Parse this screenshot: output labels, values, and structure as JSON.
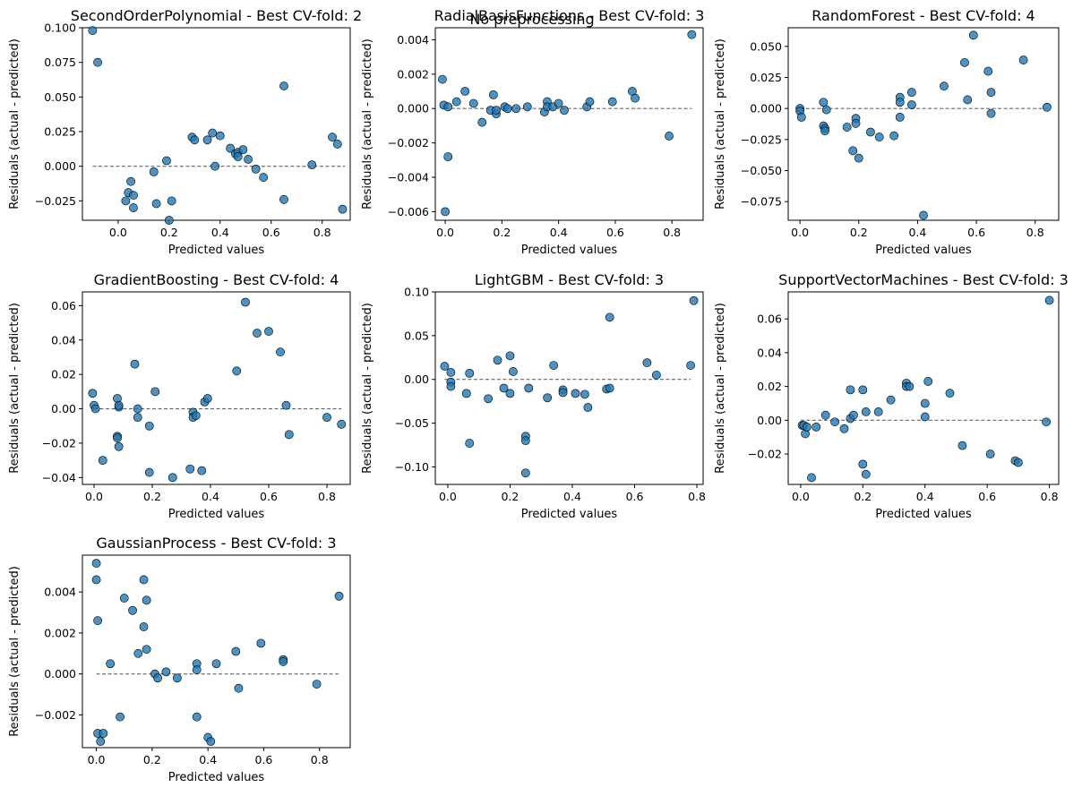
{
  "suptitle": "No preprocessing",
  "colors": {
    "point_fill": "#1f77b4",
    "point_edge": "#000000",
    "zero_line": "#666666"
  },
  "chart_data": [
    {
      "type": "scatter",
      "title": "SecondOrderPolynomial - Best CV-fold: 2",
      "xlabel": "Predicted values",
      "ylabel": "Residuals (actual - predicted)",
      "xlim": [
        -0.14,
        0.91
      ],
      "ylim": [
        -0.039,
        0.1
      ],
      "xticks": [
        0.0,
        0.2,
        0.4,
        0.6,
        0.8
      ],
      "xtick_labels": [
        "0.0",
        "0.2",
        "0.4",
        "0.6",
        "0.8"
      ],
      "yticks": [
        -0.025,
        0.0,
        0.025,
        0.05,
        0.075,
        0.1
      ],
      "ytick_labels": [
        "−0.025",
        "0.000",
        "0.025",
        "0.050",
        "0.075",
        "0.100"
      ],
      "zero_line": [
        -0.1,
        0.89
      ],
      "x": [
        -0.1,
        -0.08,
        0.03,
        0.04,
        0.05,
        0.06,
        0.06,
        0.14,
        0.15,
        0.19,
        0.2,
        0.21,
        0.29,
        0.3,
        0.35,
        0.37,
        0.38,
        0.4,
        0.44,
        0.46,
        0.47,
        0.47,
        0.49,
        0.51,
        0.54,
        0.57,
        0.65,
        0.65,
        0.76,
        0.84,
        0.86,
        0.88
      ],
      "y": [
        0.098,
        0.075,
        -0.025,
        -0.019,
        -0.011,
        -0.021,
        -0.03,
        -0.004,
        -0.027,
        0.004,
        -0.039,
        -0.025,
        0.021,
        0.019,
        0.019,
        0.024,
        0.0,
        0.022,
        0.013,
        0.009,
        0.01,
        0.007,
        0.012,
        0.005,
        -0.002,
        -0.008,
        0.058,
        -0.024,
        0.001,
        0.021,
        0.016,
        -0.031
      ]
    },
    {
      "type": "scatter",
      "title": "RadialBasisFunctions - Best CV-fold: 3",
      "xlabel": "Predicted values",
      "ylabel": "Residuals (actual - predicted)",
      "xlim": [
        -0.035,
        0.91
      ],
      "ylim": [
        -0.0065,
        0.0047
      ],
      "xticks": [
        0.0,
        0.2,
        0.4,
        0.6,
        0.8
      ],
      "xtick_labels": [
        "0.0",
        "0.2",
        "0.4",
        "0.6",
        "0.8"
      ],
      "yticks": [
        -0.006,
        -0.004,
        -0.002,
        0.0,
        0.002,
        0.004
      ],
      "ytick_labels": [
        "−0.006",
        "−0.004",
        "−0.002",
        "0.000",
        "0.002",
        "0.004"
      ],
      "zero_line": [
        0.0,
        0.87
      ],
      "x": [
        -0.01,
        -0.005,
        0.0,
        0.01,
        0.01,
        0.04,
        0.07,
        0.1,
        0.13,
        0.16,
        0.17,
        0.18,
        0.18,
        0.21,
        0.22,
        0.25,
        0.29,
        0.35,
        0.36,
        0.36,
        0.38,
        0.4,
        0.42,
        0.5,
        0.51,
        0.59,
        0.66,
        0.67,
        0.79,
        0.87
      ],
      "y": [
        0.0017,
        0.0002,
        -0.006,
        -0.0028,
        0.0001,
        0.0004,
        0.001,
        0.0003,
        -0.0008,
        -0.0001,
        0.0008,
        -0.0003,
        -0.0001,
        0.0001,
        0.0,
        0.0,
        0.0001,
        -0.0002,
        0.0004,
        0.0001,
        0.0001,
        0.0003,
        -0.0001,
        0.0001,
        0.0004,
        0.0004,
        0.001,
        0.0006,
        -0.0016,
        0.0043
      ]
    },
    {
      "type": "scatter",
      "title": "RandomForest - Best CV-fold: 4",
      "xlabel": "Predicted values",
      "ylabel": "Residuals (actual - predicted)",
      "xlim": [
        -0.04,
        0.88
      ],
      "ylim": [
        -0.09,
        0.065
      ],
      "xticks": [
        0.0,
        0.2,
        0.4,
        0.6,
        0.8
      ],
      "xtick_labels": [
        "0.0",
        "0.2",
        "0.4",
        "0.6",
        "0.8"
      ],
      "yticks": [
        -0.075,
        -0.05,
        -0.025,
        0.0,
        0.025,
        0.05
      ],
      "ytick_labels": [
        "−0.075",
        "−0.050",
        "−0.025",
        "0.000",
        "0.025",
        "0.050"
      ],
      "zero_line": [
        0.0,
        0.84
      ],
      "x": [
        0.0,
        0.0,
        0.005,
        0.08,
        0.08,
        0.085,
        0.085,
        0.09,
        0.16,
        0.18,
        0.19,
        0.19,
        0.2,
        0.24,
        0.27,
        0.32,
        0.34,
        0.34,
        0.34,
        0.38,
        0.38,
        0.42,
        0.49,
        0.56,
        0.57,
        0.59,
        0.64,
        0.65,
        0.65,
        0.76,
        0.84
      ],
      "y": [
        0.0,
        -0.002,
        -0.007,
        -0.014,
        0.005,
        -0.016,
        -0.018,
        -0.001,
        -0.015,
        -0.034,
        -0.008,
        -0.012,
        -0.04,
        -0.019,
        -0.023,
        -0.022,
        0.009,
        0.005,
        -0.007,
        0.013,
        0.003,
        -0.086,
        0.018,
        0.037,
        0.007,
        0.059,
        0.03,
        0.013,
        -0.004,
        0.039,
        0.001
      ]
    },
    {
      "type": "scatter",
      "title": "GradientBoosting - Best CV-fold: 4",
      "xlabel": "Predicted values",
      "ylabel": "Residuals (actual - predicted)",
      "xlim": [
        -0.04,
        0.88
      ],
      "ylim": [
        -0.044,
        0.068
      ],
      "xticks": [
        0.0,
        0.2,
        0.4,
        0.6,
        0.8
      ],
      "xtick_labels": [
        "0.0",
        "0.2",
        "0.4",
        "0.6",
        "0.8"
      ],
      "yticks": [
        -0.04,
        -0.02,
        0.0,
        0.02,
        0.04,
        0.06
      ],
      "ytick_labels": [
        "−0.04",
        "−0.02",
        "0.00",
        "0.02",
        "0.04",
        "0.06"
      ],
      "zero_line": [
        0.0,
        0.85
      ],
      "x": [
        -0.005,
        0.0,
        0.005,
        0.03,
        0.08,
        0.08,
        0.08,
        0.085,
        0.085,
        0.085,
        0.14,
        0.15,
        0.15,
        0.19,
        0.19,
        0.21,
        0.27,
        0.33,
        0.34,
        0.34,
        0.35,
        0.37,
        0.38,
        0.39,
        0.49,
        0.52,
        0.56,
        0.6,
        0.64,
        0.66,
        0.67,
        0.8,
        0.85
      ],
      "y": [
        0.009,
        0.002,
        0.0,
        -0.03,
        -0.016,
        -0.017,
        0.006,
        0.001,
        0.002,
        -0.022,
        0.026,
        0.0,
        -0.005,
        -0.01,
        -0.037,
        0.01,
        -0.04,
        -0.035,
        -0.002,
        -0.005,
        -0.004,
        -0.036,
        0.004,
        0.006,
        0.022,
        0.062,
        0.044,
        0.045,
        0.033,
        0.002,
        -0.015,
        -0.005,
        -0.009
      ]
    },
    {
      "type": "scatter",
      "title": "LightGBM - Best CV-fold: 3",
      "xlabel": "Predicted values",
      "ylabel": "Residuals (actual - predicted)",
      "xlim": [
        -0.04,
        0.82
      ],
      "ylim": [
        -0.12,
        0.1
      ],
      "xticks": [
        0.0,
        0.2,
        0.4,
        0.6,
        0.8
      ],
      "xtick_labels": [
        "0.0",
        "0.2",
        "0.4",
        "0.6",
        "0.8"
      ],
      "yticks": [
        -0.1,
        -0.05,
        0.0,
        0.05,
        0.1
      ],
      "ytick_labels": [
        "−0.10",
        "−0.05",
        "0.00",
        "0.05",
        "0.10"
      ],
      "zero_line": [
        -0.01,
        0.78
      ],
      "x": [
        -0.01,
        0.01,
        0.01,
        0.01,
        0.06,
        0.07,
        0.07,
        0.13,
        0.16,
        0.18,
        0.2,
        0.2,
        0.21,
        0.25,
        0.25,
        0.25,
        0.26,
        0.32,
        0.34,
        0.37,
        0.37,
        0.41,
        0.44,
        0.45,
        0.51,
        0.52,
        0.52,
        0.64,
        0.67,
        0.78,
        0.79
      ],
      "y": [
        0.015,
        0.008,
        -0.003,
        -0.008,
        -0.016,
        0.007,
        -0.073,
        -0.022,
        0.022,
        -0.01,
        0.027,
        -0.016,
        0.009,
        -0.065,
        -0.07,
        -0.107,
        -0.01,
        -0.021,
        0.016,
        -0.012,
        -0.015,
        -0.016,
        -0.017,
        -0.032,
        -0.011,
        -0.01,
        0.071,
        0.019,
        0.005,
        0.016,
        0.09
      ]
    },
    {
      "type": "scatter",
      "title": "SupportVectorMachines - Best CV-fold: 3",
      "xlabel": "Predicted values",
      "ylabel": "Residuals (actual - predicted)",
      "xlim": [
        -0.04,
        0.83
      ],
      "ylim": [
        -0.038,
        0.076
      ],
      "xticks": [
        0.0,
        0.2,
        0.4,
        0.6,
        0.8
      ],
      "xtick_labels": [
        "0.0",
        "0.2",
        "0.4",
        "0.6",
        "0.8"
      ],
      "yticks": [
        -0.02,
        0.0,
        0.02,
        0.04,
        0.06
      ],
      "ytick_labels": [
        "−0.02",
        "0.00",
        "0.02",
        "0.04",
        "0.06"
      ],
      "zero_line": [
        0.0,
        0.8
      ],
      "x": [
        0.005,
        0.01,
        0.015,
        0.02,
        0.035,
        0.05,
        0.08,
        0.11,
        0.14,
        0.16,
        0.16,
        0.17,
        0.2,
        0.2,
        0.21,
        0.21,
        0.25,
        0.29,
        0.34,
        0.34,
        0.35,
        0.4,
        0.4,
        0.41,
        0.48,
        0.52,
        0.61,
        0.69,
        0.7,
        0.79,
        0.8
      ],
      "y": [
        -0.003,
        -0.003,
        -0.008,
        -0.004,
        -0.034,
        -0.004,
        0.003,
        -0.001,
        -0.005,
        0.018,
        0.001,
        0.003,
        0.018,
        -0.026,
        -0.032,
        0.005,
        0.005,
        0.012,
        0.022,
        0.02,
        0.02,
        0.002,
        0.01,
        0.023,
        0.016,
        -0.015,
        -0.02,
        -0.024,
        -0.025,
        -0.001,
        0.071
      ]
    },
    {
      "type": "scatter",
      "title": "GaussianProcess - Best CV-fold: 3",
      "xlabel": "Predicted values",
      "ylabel": "Residuals (actual - predicted)",
      "xlim": [
        -0.05,
        0.91
      ],
      "ylim": [
        -0.0036,
        0.0058
      ],
      "xticks": [
        0.0,
        0.2,
        0.4,
        0.6,
        0.8
      ],
      "xtick_labels": [
        "0.0",
        "0.2",
        "0.4",
        "0.6",
        "0.8"
      ],
      "yticks": [
        -0.002,
        0.0,
        0.002,
        0.004
      ],
      "ytick_labels": [
        "−0.002",
        "0.000",
        "0.002",
        "0.004"
      ],
      "zero_line": [
        0.0,
        0.87
      ],
      "x": [
        0.0,
        0.0,
        0.005,
        0.005,
        0.015,
        0.025,
        0.05,
        0.085,
        0.1,
        0.13,
        0.15,
        0.17,
        0.17,
        0.18,
        0.18,
        0.21,
        0.22,
        0.25,
        0.29,
        0.36,
        0.36,
        0.36,
        0.4,
        0.41,
        0.43,
        0.5,
        0.51,
        0.59,
        0.67,
        0.67,
        0.79,
        0.87
      ],
      "y": [
        0.0054,
        0.0046,
        0.0026,
        -0.0029,
        -0.0033,
        -0.0029,
        0.0005,
        -0.0021,
        0.0037,
        0.0031,
        0.001,
        0.0046,
        0.0023,
        0.0036,
        0.0012,
        0.0,
        -0.0002,
        0.0001,
        -0.0002,
        0.0005,
        0.0002,
        -0.0021,
        -0.0031,
        -0.0033,
        0.0005,
        0.0011,
        -0.0007,
        0.0015,
        0.0007,
        0.0006,
        -0.0005,
        0.0038
      ]
    }
  ]
}
